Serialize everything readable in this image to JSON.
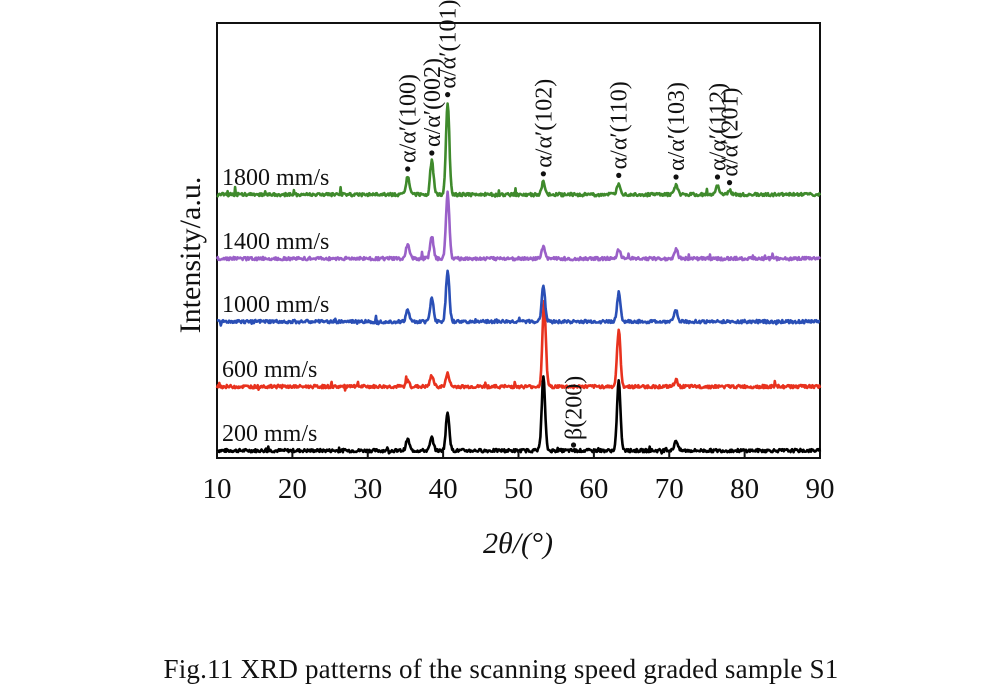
{
  "chart_data": {
    "type": "line",
    "xlabel": "2θ/(°)",
    "ylabel": "Intensity/a.u.",
    "xlim": [
      10,
      90
    ],
    "xticks": [
      10,
      20,
      30,
      40,
      50,
      60,
      70,
      80,
      90
    ],
    "grid": false,
    "baseline": 0.03,
    "peak_positions_2theta": [
      35.3,
      38.5,
      40.6,
      53.3,
      63.3,
      70.9,
      76.4,
      78.0,
      57.3
    ],
    "series": [
      {
        "name": "200 mm/s",
        "color": "#000000",
        "peaks": [
          [
            35.3,
            0.14
          ],
          [
            38.5,
            0.16
          ],
          [
            40.6,
            0.48
          ],
          [
            53.3,
            0.92
          ],
          [
            63.3,
            0.86
          ],
          [
            70.9,
            0.13
          ]
        ]
      },
      {
        "name": "600 mm/s",
        "color": "#e8321e",
        "peaks": [
          [
            35.3,
            0.07
          ],
          [
            38.5,
            0.14
          ],
          [
            40.6,
            0.16
          ],
          [
            53.4,
            1.05
          ],
          [
            63.3,
            0.7
          ],
          [
            70.9,
            0.08
          ]
        ]
      },
      {
        "name": "1000 mm/s",
        "color": "#2a4fb6",
        "peaks": [
          [
            35.3,
            0.14
          ],
          [
            38.5,
            0.3
          ],
          [
            40.6,
            0.62
          ],
          [
            53.3,
            0.45
          ],
          [
            63.3,
            0.36
          ],
          [
            70.9,
            0.14
          ]
        ]
      },
      {
        "name": "1400 mm/s",
        "color": "#9a60c8",
        "peaks": [
          [
            35.3,
            0.18
          ],
          [
            38.5,
            0.28
          ],
          [
            40.6,
            0.82
          ],
          [
            53.3,
            0.14
          ],
          [
            63.3,
            0.12
          ],
          [
            70.9,
            0.12
          ]
        ]
      },
      {
        "name": "1800 mm/s",
        "color": "#3f8a2c",
        "peaks": [
          [
            35.3,
            0.22
          ],
          [
            38.5,
            0.42
          ],
          [
            40.6,
            1.15
          ],
          [
            53.3,
            0.16
          ],
          [
            63.3,
            0.14
          ],
          [
            70.9,
            0.12
          ],
          [
            76.4,
            0.12
          ],
          [
            78.0,
            0.05
          ]
        ]
      }
    ],
    "annotations": [
      {
        "x": 35.3,
        "text": "α/α′(100)"
      },
      {
        "x": 38.5,
        "text": "α/α′(002)"
      },
      {
        "x": 40.6,
        "text": "α/α′(101)"
      },
      {
        "x": 53.3,
        "text": "α/α′(102)"
      },
      {
        "x": 63.3,
        "text": "α/α′(110)"
      },
      {
        "x": 70.9,
        "text": "α/α′(103)"
      },
      {
        "x": 76.4,
        "text": "α/α′(112)"
      },
      {
        "x": 78.0,
        "text": "α/α′(201)"
      },
      {
        "x": 57.3,
        "text": "β(200)"
      }
    ]
  },
  "caption": "Fig.11    XRD patterns of the scanning speed graded sample S1"
}
